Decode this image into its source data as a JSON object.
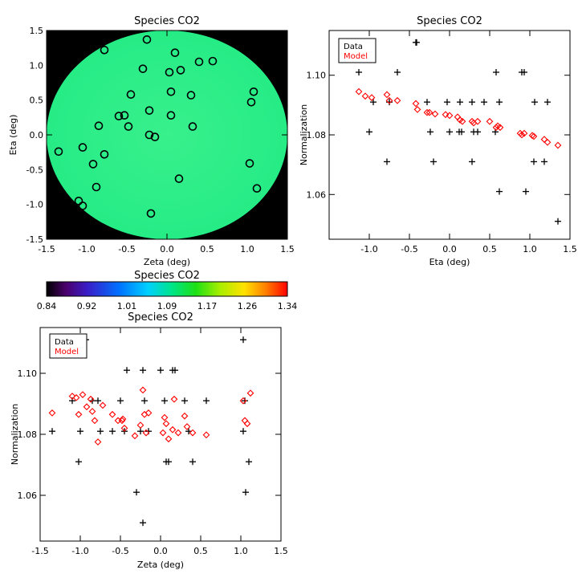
{
  "chart_data": [
    {
      "id": "map",
      "type": "scatter",
      "title": "Species CO2",
      "xlabel": "Zeta (deg)",
      "ylabel": "Eta (deg)",
      "xlim": [
        -1.5,
        1.5
      ],
      "ylim": [
        -1.5,
        1.5
      ],
      "xticks": [
        -1.5,
        -1.0,
        -0.5,
        0.0,
        0.5,
        1.0,
        1.5
      ],
      "yticks": [
        -1.5,
        -1.0,
        -0.5,
        0.0,
        0.5,
        1.0,
        1.5
      ],
      "background": "#000000",
      "field_color": "#2ef08a",
      "marker": "circle",
      "points": [
        [
          -1.35,
          -0.24
        ],
        [
          -1.1,
          -0.95
        ],
        [
          -1.05,
          -1.02
        ],
        [
          -1.05,
          -0.18
        ],
        [
          -0.92,
          -0.42
        ],
        [
          -0.88,
          -0.75
        ],
        [
          -0.85,
          0.13
        ],
        [
          -0.78,
          -0.28
        ],
        [
          -0.78,
          1.22
        ],
        [
          -0.6,
          0.27
        ],
        [
          -0.53,
          0.28
        ],
        [
          -0.48,
          0.12
        ],
        [
          -0.45,
          0.58
        ],
        [
          -0.3,
          0.95
        ],
        [
          -0.25,
          1.37
        ],
        [
          -0.22,
          0.0
        ],
        [
          -0.22,
          0.35
        ],
        [
          -0.2,
          -1.13
        ],
        [
          -0.15,
          -0.03
        ],
        [
          0.03,
          0.9
        ],
        [
          0.05,
          0.62
        ],
        [
          0.05,
          0.28
        ],
        [
          0.1,
          1.18
        ],
        [
          0.15,
          -0.63
        ],
        [
          0.17,
          0.93
        ],
        [
          0.3,
          0.57
        ],
        [
          0.32,
          0.12
        ],
        [
          0.4,
          1.05
        ],
        [
          0.57,
          1.06
        ],
        [
          1.03,
          -0.41
        ],
        [
          1.05,
          0.47
        ],
        [
          1.08,
          0.62
        ],
        [
          1.12,
          -0.77
        ]
      ]
    },
    {
      "id": "colorbar",
      "type": "heatmap",
      "title": "Species CO2",
      "tick_labels": [
        "0.84",
        "0.92",
        "1.01",
        "1.09",
        "1.17",
        "1.26",
        "1.34"
      ],
      "range": [
        0.84,
        1.34
      ]
    },
    {
      "id": "eta",
      "type": "scatter",
      "title": "Species CO2",
      "xlabel": "Eta (deg)",
      "ylabel": "Normalization",
      "xlim": [
        -1.5,
        1.5
      ],
      "ylim": [
        1.045,
        1.115
      ],
      "xticks": [
        -1.0,
        -0.5,
        0.0,
        0.5,
        1.0,
        1.5
      ],
      "yticks": [
        1.06,
        1.08,
        1.1
      ],
      "ytick_labels": [
        "1.06",
        "1.08",
        "1.10"
      ],
      "legend": [
        "Data",
        "Model"
      ],
      "legend_colors": [
        "#000000",
        "#ff0000"
      ],
      "series": [
        {
          "name": "Data",
          "marker": "plus",
          "color": "#000000",
          "points": [
            [
              -1.13,
              1.101
            ],
            [
              -1.0,
              1.081
            ],
            [
              -0.95,
              1.091
            ],
            [
              -0.78,
              1.071
            ],
            [
              -0.75,
              1.091
            ],
            [
              -0.65,
              1.101
            ],
            [
              -0.42,
              1.111
            ],
            [
              -0.41,
              1.111
            ],
            [
              -0.28,
              1.091
            ],
            [
              -0.24,
              1.081
            ],
            [
              -0.2,
              1.071
            ],
            [
              -0.03,
              1.091
            ],
            [
              0.0,
              1.081
            ],
            [
              0.12,
              1.081
            ],
            [
              0.13,
              1.091
            ],
            [
              0.15,
              1.081
            ],
            [
              0.28,
              1.071
            ],
            [
              0.28,
              1.091
            ],
            [
              0.3,
              1.081
            ],
            [
              0.35,
              1.081
            ],
            [
              0.43,
              1.091
            ],
            [
              0.57,
              1.081
            ],
            [
              0.58,
              1.101
            ],
            [
              0.62,
              1.061
            ],
            [
              0.62,
              1.091
            ],
            [
              0.9,
              1.101
            ],
            [
              0.93,
              1.101
            ],
            [
              0.95,
              1.061
            ],
            [
              1.05,
              1.071
            ],
            [
              1.06,
              1.091
            ],
            [
              1.18,
              1.071
            ],
            [
              1.22,
              1.091
            ],
            [
              1.35,
              1.051
            ]
          ]
        },
        {
          "name": "Model",
          "marker": "diamond",
          "color": "#ff0000",
          "points": [
            [
              -1.13,
              1.0945
            ],
            [
              -1.05,
              1.093
            ],
            [
              -0.97,
              1.0925
            ],
            [
              -0.78,
              1.0935
            ],
            [
              -0.75,
              1.0915
            ],
            [
              -0.65,
              1.0915
            ],
            [
              -0.42,
              1.0905
            ],
            [
              -0.4,
              1.0885
            ],
            [
              -0.28,
              1.0875
            ],
            [
              -0.25,
              1.0875
            ],
            [
              -0.18,
              1.087
            ],
            [
              -0.05,
              1.0868
            ],
            [
              0.0,
              1.0865
            ],
            [
              0.1,
              1.086
            ],
            [
              0.13,
              1.085
            ],
            [
              0.16,
              1.0845
            ],
            [
              0.28,
              1.0845
            ],
            [
              0.3,
              1.084
            ],
            [
              0.35,
              1.0845
            ],
            [
              0.5,
              1.0845
            ],
            [
              0.58,
              1.0825
            ],
            [
              0.6,
              1.083
            ],
            [
              0.63,
              1.0825
            ],
            [
              0.88,
              1.0805
            ],
            [
              0.9,
              1.08
            ],
            [
              0.93,
              1.0805
            ],
            [
              1.03,
              1.0798
            ],
            [
              1.05,
              1.0795
            ],
            [
              1.18,
              1.0785
            ],
            [
              1.22,
              1.0775
            ],
            [
              1.35,
              1.0765
            ]
          ]
        }
      ]
    },
    {
      "id": "zeta",
      "type": "scatter",
      "title": "Species CO2",
      "xlabel": "Zeta (deg)",
      "ylabel": "Normalization",
      "xlim": [
        -1.5,
        1.5
      ],
      "ylim": [
        1.045,
        1.115
      ],
      "xticks": [
        -1.5,
        -1.0,
        -0.5,
        0.0,
        0.5,
        1.0,
        1.5
      ],
      "yticks": [
        1.06,
        1.08,
        1.1
      ],
      "ytick_labels": [
        "1.06",
        "1.08",
        "1.10"
      ],
      "legend": [
        "Data",
        "Model"
      ],
      "legend_colors": [
        "#000000",
        "#ff0000"
      ],
      "series": [
        {
          "name": "Data",
          "marker": "plus",
          "color": "#000000",
          "points": [
            [
              -1.35,
              1.081
            ],
            [
              -1.1,
              1.091
            ],
            [
              -1.02,
              1.071
            ],
            [
              -1.0,
              1.081
            ],
            [
              -0.93,
              1.111
            ],
            [
              -0.85,
              1.091
            ],
            [
              -0.78,
              1.091
            ],
            [
              -0.75,
              1.081
            ],
            [
              -0.6,
              1.081
            ],
            [
              -0.5,
              1.091
            ],
            [
              -0.45,
              1.081
            ],
            [
              -0.42,
              1.101
            ],
            [
              -0.3,
              1.061
            ],
            [
              -0.25,
              1.081
            ],
            [
              -0.22,
              1.101
            ],
            [
              -0.2,
              1.091
            ],
            [
              -0.22,
              1.051
            ],
            [
              -0.15,
              1.081
            ],
            [
              0.0,
              1.101
            ],
            [
              0.05,
              1.091
            ],
            [
              0.07,
              1.071
            ],
            [
              0.1,
              1.071
            ],
            [
              0.15,
              1.101
            ],
            [
              0.18,
              1.101
            ],
            [
              0.3,
              1.091
            ],
            [
              0.35,
              1.081
            ],
            [
              0.4,
              1.071
            ],
            [
              0.57,
              1.091
            ],
            [
              1.03,
              1.111
            ],
            [
              1.05,
              1.091
            ],
            [
              1.06,
              1.061
            ],
            [
              1.1,
              1.071
            ],
            [
              1.03,
              1.081
            ]
          ]
        },
        {
          "name": "Model",
          "marker": "diamond",
          "color": "#ff0000",
          "points": [
            [
              -1.35,
              1.087
            ],
            [
              -1.1,
              1.0925
            ],
            [
              -1.05,
              1.092
            ],
            [
              -1.02,
              1.0865
            ],
            [
              -0.97,
              1.093
            ],
            [
              -0.92,
              1.089
            ],
            [
              -0.87,
              1.0915
            ],
            [
              -0.85,
              1.0875
            ],
            [
              -0.82,
              1.0845
            ],
            [
              -0.78,
              1.0775
            ],
            [
              -0.72,
              1.0895
            ],
            [
              -0.6,
              1.0865
            ],
            [
              -0.53,
              1.0845
            ],
            [
              -0.48,
              1.0845
            ],
            [
              -0.47,
              1.085
            ],
            [
              -0.45,
              1.082
            ],
            [
              -0.32,
              1.0795
            ],
            [
              -0.25,
              1.083
            ],
            [
              -0.22,
              1.0945
            ],
            [
              -0.2,
              1.0865
            ],
            [
              -0.18,
              1.0805
            ],
            [
              -0.15,
              1.087
            ],
            [
              0.03,
              1.0805
            ],
            [
              0.05,
              1.0855
            ],
            [
              0.07,
              1.0835
            ],
            [
              0.1,
              1.0785
            ],
            [
              0.15,
              1.0815
            ],
            [
              0.17,
              1.0915
            ],
            [
              0.22,
              1.0805
            ],
            [
              0.3,
              1.086
            ],
            [
              0.33,
              1.0825
            ],
            [
              0.4,
              1.0805
            ],
            [
              0.57,
              1.0798
            ],
            [
              1.03,
              1.091
            ],
            [
              1.05,
              1.0845
            ],
            [
              1.08,
              1.0835
            ],
            [
              1.12,
              1.0935
            ]
          ]
        }
      ]
    }
  ]
}
